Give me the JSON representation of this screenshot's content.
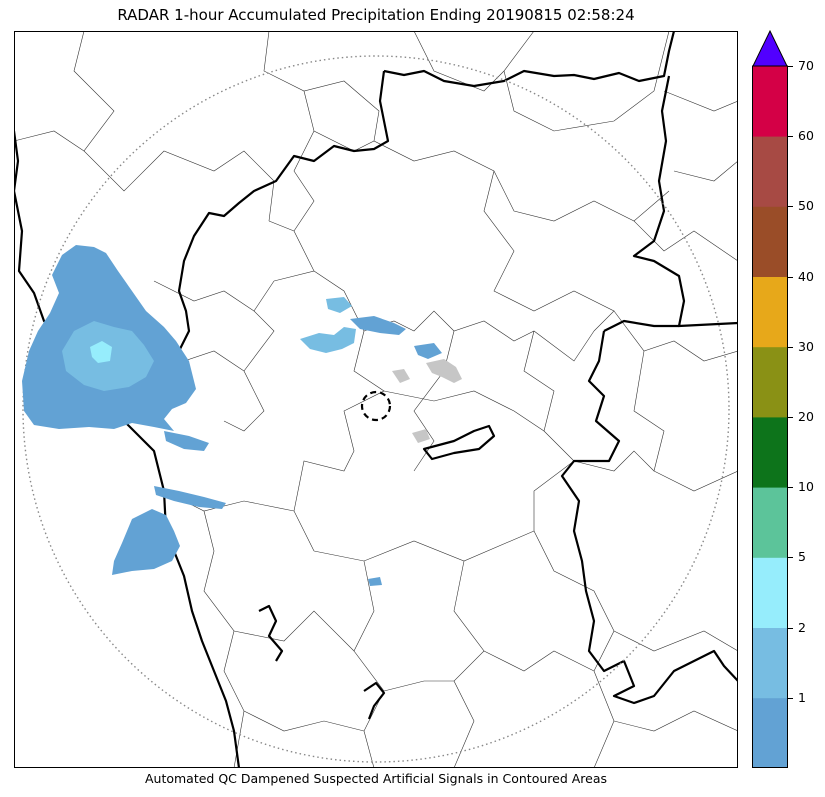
{
  "title": "RADAR 1-hour Accumulated Precipitation Ending 20190815 02:58:24",
  "footnote": "Automated QC Dampened Suspected Artificial Signals in Contoured Areas",
  "colorbar": {
    "tick_labels": [
      "1",
      "2",
      "5",
      "10",
      "20",
      "30",
      "40",
      "50",
      "60",
      "70"
    ],
    "bins": [
      {
        "label": "0-1",
        "color": "#62a2d4"
      },
      {
        "label": "1-2",
        "color": "#77bde2"
      },
      {
        "label": "2-5",
        "color": "#96edfc"
      },
      {
        "label": "5-10",
        "color": "#5cc49a"
      },
      {
        "label": "10-20",
        "color": "#0d741b"
      },
      {
        "label": "20-30",
        "color": "#8a9115"
      },
      {
        "label": "30-40",
        "color": "#e7a81a"
      },
      {
        "label": "40-50",
        "color": "#9a4d28"
      },
      {
        "label": "50-60",
        "color": "#a74a44"
      },
      {
        "label": "60-70",
        "color": "#d40046"
      }
    ],
    "over_color": "#5100ff"
  },
  "map": {
    "range_ring": "dotted",
    "radar_site_marker": "dashed-circle",
    "qc_contour_color": "#000000",
    "boundary_color": "#000000"
  }
}
